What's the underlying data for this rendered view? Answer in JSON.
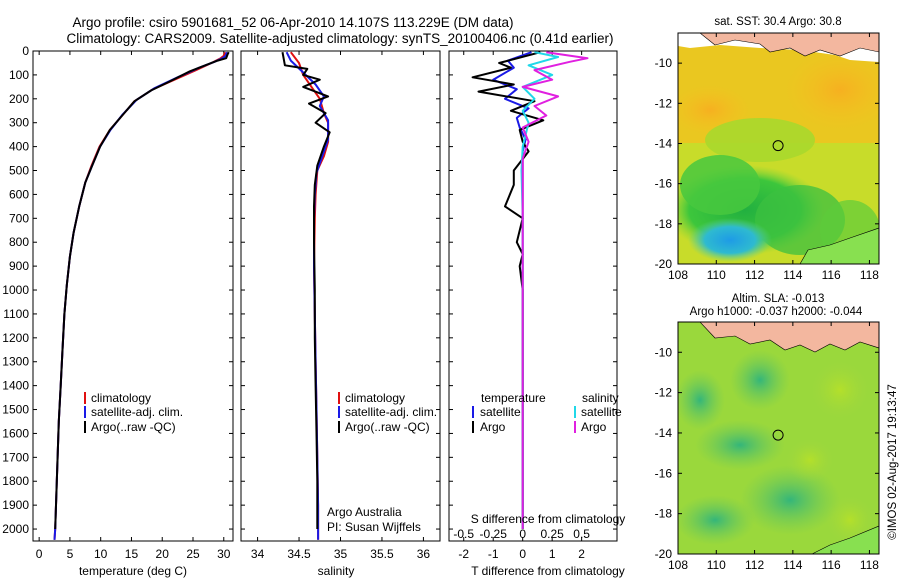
{
  "header": {
    "line1": "Argo profile: csiro 5901681_52 06-Apr-2010 14.107S 113.229E (DM data)",
    "line2": "Climatology: CARS2009. Satellite-adjusted climatology: synTS_20100406.nc (0.41d earlier)"
  },
  "footer": {
    "credit": "©IMOS 02-Aug-2017 19:13:47",
    "argo_australia": "Argo Australia",
    "pi": "PI: Susan Wijffels"
  },
  "colors": {
    "climatology": "#e01010",
    "satellite": "#1a1ae6",
    "argo": "#000000",
    "sat_salinity": "#20d8e8",
    "argo_salinity": "#e020e0"
  },
  "legends": {
    "temperature_panel": [
      "climatology",
      "satellite-adj. clim.",
      "Argo(..raw -QC)"
    ],
    "salinity_panel": [
      "climatology",
      "satellite-adj. clim.",
      "Argo(..raw -QC)"
    ],
    "diff_panel": {
      "temp_header": "temperature",
      "sal_header": "salinity",
      "temp_items": [
        "satellite",
        "Argo"
      ],
      "sal_items": [
        "satellite",
        "Argo"
      ]
    }
  },
  "chart_data": [
    {
      "type": "line",
      "id": "temperature_profile",
      "xlabel": "temperature (deg C)",
      "ylabel": "",
      "xlim": [
        -1,
        31.5
      ],
      "ylim": [
        2050,
        0
      ],
      "xticks": [
        0,
        5,
        10,
        15,
        20,
        25,
        30
      ],
      "yticks": [
        0,
        100,
        200,
        300,
        400,
        500,
        600,
        700,
        800,
        900,
        1000,
        1100,
        1200,
        1300,
        1400,
        1500,
        1600,
        1700,
        1800,
        1900,
        2000
      ],
      "series": [
        {
          "name": "climatology",
          "color_key": "climatology",
          "points": [
            [
              30.2,
              5
            ],
            [
              30,
              20
            ],
            [
              29.5,
              30
            ],
            [
              28,
              50
            ],
            [
              25.5,
              80
            ],
            [
              22,
              120
            ],
            [
              18.5,
              160
            ],
            [
              15.5,
              210
            ],
            [
              13.5,
              270
            ],
            [
              11.5,
              330
            ],
            [
              9.8,
              400
            ],
            [
              8.5,
              480
            ],
            [
              7.5,
              550
            ],
            [
              6.5,
              650
            ],
            [
              5.6,
              760
            ],
            [
              5,
              860
            ],
            [
              4.5,
              980
            ],
            [
              4.1,
              1100
            ],
            [
              3.8,
              1250
            ],
            [
              3.5,
              1400
            ],
            [
              3.2,
              1550
            ],
            [
              3,
              1700
            ],
            [
              2.8,
              1850
            ],
            [
              2.6,
              2000
            ],
            [
              2.5,
              2045
            ]
          ]
        },
        {
          "name": "satellite-adj. clim.",
          "color_key": "satellite",
          "points": [
            [
              30.5,
              5
            ],
            [
              30.3,
              20
            ],
            [
              29.8,
              30
            ],
            [
              28.5,
              45
            ],
            [
              26,
              70
            ],
            [
              22.5,
              110
            ],
            [
              18.8,
              155
            ],
            [
              15.8,
              205
            ],
            [
              13.6,
              265
            ],
            [
              11.6,
              330
            ],
            [
              9.9,
              400
            ],
            [
              8.6,
              480
            ],
            [
              7.5,
              550
            ],
            [
              6.5,
              650
            ],
            [
              5.6,
              760
            ],
            [
              5,
              860
            ],
            [
              4.5,
              980
            ],
            [
              4.1,
              1100
            ],
            [
              3.8,
              1250
            ],
            [
              3.5,
              1400
            ],
            [
              3.2,
              1550
            ],
            [
              3,
              1700
            ],
            [
              2.8,
              1850
            ],
            [
              2.6,
              2000
            ],
            [
              2.5,
              2045
            ]
          ]
        },
        {
          "name": "Argo(..raw -QC)",
          "color_key": "argo",
          "points": [
            [
              30.8,
              5
            ],
            [
              30.6,
              15
            ],
            [
              30.4,
              30
            ],
            [
              29,
              40
            ],
            [
              27,
              60
            ],
            [
              24.5,
              85
            ],
            [
              21,
              130
            ],
            [
              18.2,
              165
            ],
            [
              15.5,
              210
            ],
            [
              13.5,
              270
            ],
            [
              11.5,
              330
            ],
            [
              9.9,
              400
            ],
            [
              8.6,
              480
            ],
            [
              7.5,
              550
            ],
            [
              6.5,
              650
            ],
            [
              5.6,
              760
            ],
            [
              5,
              860
            ],
            [
              4.5,
              980
            ],
            [
              4.1,
              1100
            ],
            [
              3.8,
              1250
            ],
            [
              3.5,
              1400
            ],
            [
              3.2,
              1550
            ],
            [
              3,
              1700
            ],
            [
              2.8,
              1850
            ],
            [
              2.6,
              2000
            ]
          ]
        }
      ]
    },
    {
      "type": "line",
      "id": "salinity_profile",
      "xlabel": "salinity",
      "xlim": [
        33.8,
        36.2
      ],
      "ylim": [
        2050,
        0
      ],
      "xticks": [
        34,
        34.5,
        35,
        35.5,
        36
      ],
      "series": [
        {
          "name": "climatology",
          "color_key": "climatology",
          "points": [
            [
              34.4,
              5
            ],
            [
              34.5,
              50
            ],
            [
              34.55,
              100
            ],
            [
              34.65,
              150
            ],
            [
              34.75,
              200
            ],
            [
              34.8,
              260
            ],
            [
              34.85,
              300
            ],
            [
              34.85,
              380
            ],
            [
              34.8,
              440
            ],
            [
              34.72,
              500
            ],
            [
              34.7,
              600
            ],
            [
              34.69,
              700
            ],
            [
              34.68,
              900
            ],
            [
              34.69,
              1100
            ],
            [
              34.7,
              1300
            ],
            [
              34.71,
              1500
            ],
            [
              34.72,
              1700
            ],
            [
              34.73,
              1900
            ],
            [
              34.73,
              2045
            ]
          ]
        },
        {
          "name": "satellite-adj. clim.",
          "color_key": "satellite",
          "points": [
            [
              34.35,
              5
            ],
            [
              34.4,
              40
            ],
            [
              34.55,
              90
            ],
            [
              34.7,
              140
            ],
            [
              34.8,
              190
            ],
            [
              34.75,
              230
            ],
            [
              34.85,
              290
            ],
            [
              34.85,
              370
            ],
            [
              34.78,
              440
            ],
            [
              34.71,
              510
            ],
            [
              34.69,
              600
            ],
            [
              34.68,
              700
            ],
            [
              34.68,
              900
            ],
            [
              34.69,
              1100
            ],
            [
              34.7,
              1300
            ],
            [
              34.71,
              1500
            ],
            [
              34.72,
              1700
            ],
            [
              34.73,
              1900
            ],
            [
              34.73,
              2045
            ]
          ]
        },
        {
          "name": "Argo(..raw -QC)",
          "color_key": "argo",
          "points": [
            [
              34.3,
              5
            ],
            [
              34.33,
              60
            ],
            [
              34.6,
              75
            ],
            [
              34.55,
              100
            ],
            [
              34.75,
              120
            ],
            [
              34.55,
              150
            ],
            [
              34.85,
              190
            ],
            [
              34.62,
              220
            ],
            [
              34.82,
              260
            ],
            [
              34.7,
              300
            ],
            [
              34.87,
              340
            ],
            [
              34.8,
              400
            ],
            [
              34.72,
              480
            ],
            [
              34.69,
              560
            ],
            [
              34.68,
              650
            ],
            [
              34.68,
              800
            ],
            [
              34.69,
              1000
            ],
            [
              34.69,
              1200
            ],
            [
              34.7,
              1400
            ],
            [
              34.71,
              1600
            ],
            [
              34.72,
              1800
            ],
            [
              34.72,
              2000
            ]
          ]
        }
      ]
    },
    {
      "type": "line",
      "id": "difference_profile",
      "xlabel": "T difference from climatology",
      "x2label": "S difference from climatology",
      "xlim": [
        -2.5,
        3.2
      ],
      "x2lim": [
        -0.625,
        0.8
      ],
      "ylim": [
        2050,
        0
      ],
      "xticks": [
        -2,
        -1,
        0,
        1,
        2
      ],
      "x2ticks": [
        -0.5,
        -0.25,
        0,
        0.25,
        0.5
      ],
      "x2ticklabels": [
        "-0.5",
        "-0.25",
        "0",
        "0.25",
        "0.5"
      ],
      "series": [
        {
          "name": "temperature satellite",
          "color_key": "satellite",
          "axis": "T",
          "points": [
            [
              0.3,
              5
            ],
            [
              -0.5,
              40
            ],
            [
              -0.3,
              70
            ],
            [
              -1,
              120
            ],
            [
              -0.2,
              160
            ],
            [
              -0.6,
              200
            ],
            [
              0.2,
              240
            ],
            [
              -0.2,
              280
            ],
            [
              -0.1,
              320
            ],
            [
              0.1,
              370
            ],
            [
              0,
              420
            ],
            [
              0,
              500
            ],
            [
              0,
              700
            ],
            [
              0,
              1000
            ],
            [
              0,
              1400
            ],
            [
              0,
              1800
            ],
            [
              0,
              2000
            ]
          ]
        },
        {
          "name": "temperature Argo",
          "color_key": "argo",
          "axis": "T",
          "points": [
            [
              0.6,
              5
            ],
            [
              -0.8,
              50
            ],
            [
              -0.4,
              70
            ],
            [
              -1.7,
              110
            ],
            [
              -0.3,
              140
            ],
            [
              -1.5,
              170
            ],
            [
              0.4,
              210
            ],
            [
              -0.4,
              250
            ],
            [
              0.7,
              290
            ],
            [
              -0.1,
              330
            ],
            [
              0,
              380
            ],
            [
              0.2,
              420
            ],
            [
              -0.3,
              500
            ],
            [
              -0.3,
              560
            ],
            [
              -0.6,
              650
            ],
            [
              0,
              700
            ],
            [
              -0.2,
              800
            ],
            [
              0,
              850
            ],
            [
              -0.1,
              900
            ],
            [
              0,
              1000
            ],
            [
              0,
              1400
            ],
            [
              0,
              1800
            ],
            [
              0,
              2000
            ]
          ]
        },
        {
          "name": "salinity satellite",
          "color_key": "sat_salinity",
          "axis": "S",
          "points": [
            [
              0.1,
              5
            ],
            [
              0.3,
              25
            ],
            [
              0.05,
              60
            ],
            [
              0.25,
              100
            ],
            [
              0,
              150
            ],
            [
              0.1,
              200
            ],
            [
              0,
              250
            ],
            [
              0.05,
              300
            ],
            [
              0,
              400
            ],
            [
              -0.01,
              500
            ],
            [
              0,
              700
            ],
            [
              0,
              1000
            ],
            [
              0,
              1400
            ],
            [
              0,
              1800
            ],
            [
              0,
              2000
            ]
          ]
        },
        {
          "name": "salinity Argo",
          "color_key": "argo_salinity",
          "axis": "S",
          "points": [
            [
              0.2,
              5
            ],
            [
              0.55,
              30
            ],
            [
              0.4,
              45
            ],
            [
              0.1,
              80
            ],
            [
              0.25,
              120
            ],
            [
              0,
              150
            ],
            [
              0.3,
              190
            ],
            [
              0.1,
              230
            ],
            [
              0.2,
              270
            ],
            [
              0,
              320
            ],
            [
              0.05,
              380
            ],
            [
              0,
              450
            ],
            [
              0,
              700
            ],
            [
              0,
              1000
            ],
            [
              0,
              1400
            ],
            [
              0,
              1800
            ],
            [
              0,
              2000
            ]
          ]
        }
      ]
    },
    {
      "type": "heatmap",
      "id": "sst_map",
      "title": "sat. SST: 30.4  Argo: 30.8",
      "xlim": [
        108,
        118.5
      ],
      "ylim": [
        -20,
        -8.5
      ],
      "xticks": [
        108,
        110,
        112,
        114,
        116,
        118
      ],
      "yticks": [
        -10,
        -12,
        -14,
        -16,
        -18,
        -20
      ],
      "marker": {
        "lon": 113.229,
        "lat": -14.107
      }
    },
    {
      "type": "heatmap",
      "id": "sla_map",
      "title1": "Altim. SLA: -0.013",
      "title2": "Argo h1000: -0.037  h2000: -0.044",
      "xlim": [
        108,
        118.5
      ],
      "ylim": [
        -20,
        -8.5
      ],
      "xticks": [
        108,
        110,
        112,
        114,
        116,
        118
      ],
      "yticks": [
        -10,
        -12,
        -14,
        -16,
        -18,
        -20
      ],
      "marker": {
        "lon": 113.229,
        "lat": -14.107
      }
    }
  ]
}
